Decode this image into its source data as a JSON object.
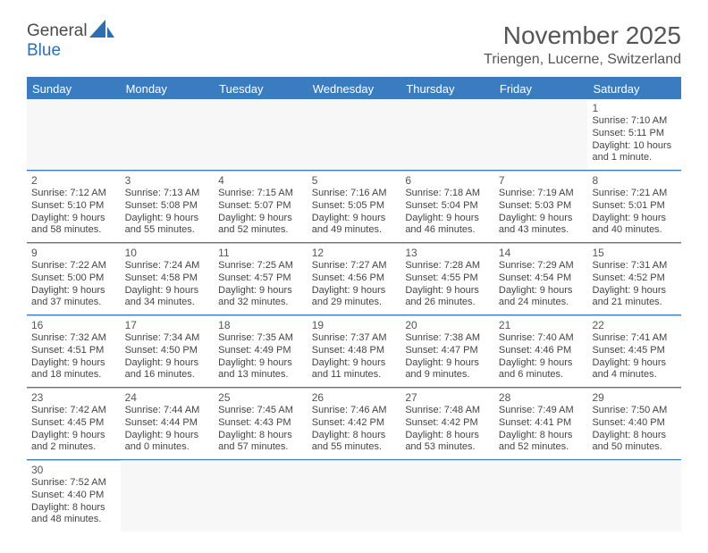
{
  "brand": {
    "line1": "General",
    "line2": "Blue"
  },
  "title": "November 2025",
  "location": "Triengen, Lucerne, Switzerland",
  "dayNames": [
    "Sunday",
    "Monday",
    "Tuesday",
    "Wednesday",
    "Thursday",
    "Friday",
    "Saturday"
  ],
  "colors": {
    "accent": "#3b7bbf",
    "text": "#555",
    "altRow": "#f7f7f7"
  },
  "weeks": [
    [
      null,
      null,
      null,
      null,
      null,
      null,
      {
        "n": "1",
        "sr": "7:10 AM",
        "ss": "5:11 PM",
        "dl": "10 hours and 1 minute."
      }
    ],
    [
      {
        "n": "2",
        "sr": "7:12 AM",
        "ss": "5:10 PM",
        "dl": "9 hours and 58 minutes."
      },
      {
        "n": "3",
        "sr": "7:13 AM",
        "ss": "5:08 PM",
        "dl": "9 hours and 55 minutes."
      },
      {
        "n": "4",
        "sr": "7:15 AM",
        "ss": "5:07 PM",
        "dl": "9 hours and 52 minutes."
      },
      {
        "n": "5",
        "sr": "7:16 AM",
        "ss": "5:05 PM",
        "dl": "9 hours and 49 minutes."
      },
      {
        "n": "6",
        "sr": "7:18 AM",
        "ss": "5:04 PM",
        "dl": "9 hours and 46 minutes."
      },
      {
        "n": "7",
        "sr": "7:19 AM",
        "ss": "5:03 PM",
        "dl": "9 hours and 43 minutes."
      },
      {
        "n": "8",
        "sr": "7:21 AM",
        "ss": "5:01 PM",
        "dl": "9 hours and 40 minutes."
      }
    ],
    [
      {
        "n": "9",
        "sr": "7:22 AM",
        "ss": "5:00 PM",
        "dl": "9 hours and 37 minutes."
      },
      {
        "n": "10",
        "sr": "7:24 AM",
        "ss": "4:58 PM",
        "dl": "9 hours and 34 minutes."
      },
      {
        "n": "11",
        "sr": "7:25 AM",
        "ss": "4:57 PM",
        "dl": "9 hours and 32 minutes."
      },
      {
        "n": "12",
        "sr": "7:27 AM",
        "ss": "4:56 PM",
        "dl": "9 hours and 29 minutes."
      },
      {
        "n": "13",
        "sr": "7:28 AM",
        "ss": "4:55 PM",
        "dl": "9 hours and 26 minutes."
      },
      {
        "n": "14",
        "sr": "7:29 AM",
        "ss": "4:54 PM",
        "dl": "9 hours and 24 minutes."
      },
      {
        "n": "15",
        "sr": "7:31 AM",
        "ss": "4:52 PM",
        "dl": "9 hours and 21 minutes."
      }
    ],
    [
      {
        "n": "16",
        "sr": "7:32 AM",
        "ss": "4:51 PM",
        "dl": "9 hours and 18 minutes."
      },
      {
        "n": "17",
        "sr": "7:34 AM",
        "ss": "4:50 PM",
        "dl": "9 hours and 16 minutes."
      },
      {
        "n": "18",
        "sr": "7:35 AM",
        "ss": "4:49 PM",
        "dl": "9 hours and 13 minutes."
      },
      {
        "n": "19",
        "sr": "7:37 AM",
        "ss": "4:48 PM",
        "dl": "9 hours and 11 minutes."
      },
      {
        "n": "20",
        "sr": "7:38 AM",
        "ss": "4:47 PM",
        "dl": "9 hours and 9 minutes."
      },
      {
        "n": "21",
        "sr": "7:40 AM",
        "ss": "4:46 PM",
        "dl": "9 hours and 6 minutes."
      },
      {
        "n": "22",
        "sr": "7:41 AM",
        "ss": "4:45 PM",
        "dl": "9 hours and 4 minutes."
      }
    ],
    [
      {
        "n": "23",
        "sr": "7:42 AM",
        "ss": "4:45 PM",
        "dl": "9 hours and 2 minutes."
      },
      {
        "n": "24",
        "sr": "7:44 AM",
        "ss": "4:44 PM",
        "dl": "9 hours and 0 minutes."
      },
      {
        "n": "25",
        "sr": "7:45 AM",
        "ss": "4:43 PM",
        "dl": "8 hours and 57 minutes."
      },
      {
        "n": "26",
        "sr": "7:46 AM",
        "ss": "4:42 PM",
        "dl": "8 hours and 55 minutes."
      },
      {
        "n": "27",
        "sr": "7:48 AM",
        "ss": "4:42 PM",
        "dl": "8 hours and 53 minutes."
      },
      {
        "n": "28",
        "sr": "7:49 AM",
        "ss": "4:41 PM",
        "dl": "8 hours and 52 minutes."
      },
      {
        "n": "29",
        "sr": "7:50 AM",
        "ss": "4:40 PM",
        "dl": "8 hours and 50 minutes."
      }
    ],
    [
      {
        "n": "30",
        "sr": "7:52 AM",
        "ss": "4:40 PM",
        "dl": "8 hours and 48 minutes."
      },
      null,
      null,
      null,
      null,
      null,
      null
    ]
  ],
  "labels": {
    "sr": "Sunrise: ",
    "ss": "Sunset: ",
    "dl": "Daylight: "
  }
}
